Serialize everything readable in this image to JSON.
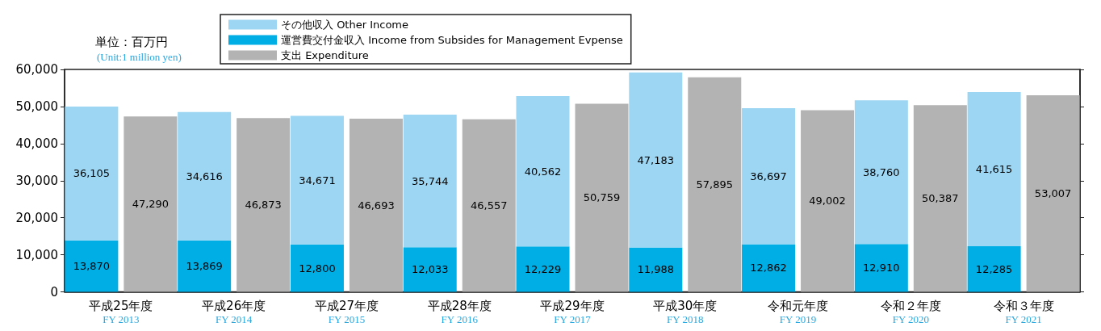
{
  "chart_data": {
    "type": "bar",
    "stacked": true,
    "categories": [
      "平成25年度\nFY 2013",
      "平成26年度\nFY 2014",
      "平成27年度\nFY 2015",
      "平成28年度\nFY 2016",
      "平成29年度\nFY 2017",
      "平成30年度\nFY 2018",
      "令和元年度\nFY 2019",
      "令和２年度\nFY 2020",
      "令和３年度\nFY 2021"
    ],
    "series": [
      {
        "name": "運営費交付金収入 Income from Subsides for Management Evpense",
        "color": "#00aee6",
        "values": [
          13870,
          13869,
          12800,
          12033,
          12229,
          11988,
          12862,
          12910,
          12285
        ],
        "value_labels": [
          "13,870",
          "13,869",
          "12,800",
          "12,033",
          "12,229",
          "11,988",
          "12,862",
          "12,910",
          "12,285"
        ]
      },
      {
        "name": "その他収入 Other Income",
        "color": "#9dd6f3",
        "values": [
          36105,
          34616,
          34671,
          35744,
          40562,
          47183,
          36697,
          38760,
          41615
        ],
        "value_labels": [
          "36,105",
          "34,616",
          "34,671",
          "35,744",
          "40,562",
          "47,183",
          "36,697",
          "38,760",
          "41,615"
        ]
      },
      {
        "name": "支出 Expenditure",
        "color": "#b3b3b3",
        "axis": "y2",
        "values": [
          47290,
          46873,
          46693,
          46557,
          50759,
          57895,
          49002,
          50387,
          53007
        ],
        "value_labels": [
          "47,290",
          "46,873",
          "46,693",
          "46,557",
          "50,759",
          "57,895",
          "49,002",
          "50,387",
          "53,007"
        ]
      }
    ],
    "ylim": [
      0,
      60000
    ],
    "yticks": [
      0,
      {
        "value": 10000,
        "label": "10,000"
      },
      {
        "value": 20000,
        "label": "20,000"
      },
      {
        "value": 30000,
        "label": "30,000"
      },
      {
        "value": 40000,
        "label": "40,000"
      },
      {
        "value": 50000,
        "label": "50,000"
      },
      {
        "value": 60000,
        "label": "60,000"
      }
    ],
    "y2lim": [
      0,
      60000
    ],
    "y2ticks": [
      {
        "value": 0,
        "label": null
      },
      {
        "value": 10000,
        "label": null
      },
      {
        "value": 20000,
        "label": null
      },
      {
        "value": 30000,
        "label": null
      },
      {
        "value": 40000,
        "label": null
      },
      {
        "value": 50000,
        "label": null
      },
      {
        "value": 60000,
        "label": null
      }
    ],
    "grid": false,
    "legend": "top",
    "annotations": [
      "単位：百万円",
      "(Unit:1 million yen)"
    ]
  }
}
